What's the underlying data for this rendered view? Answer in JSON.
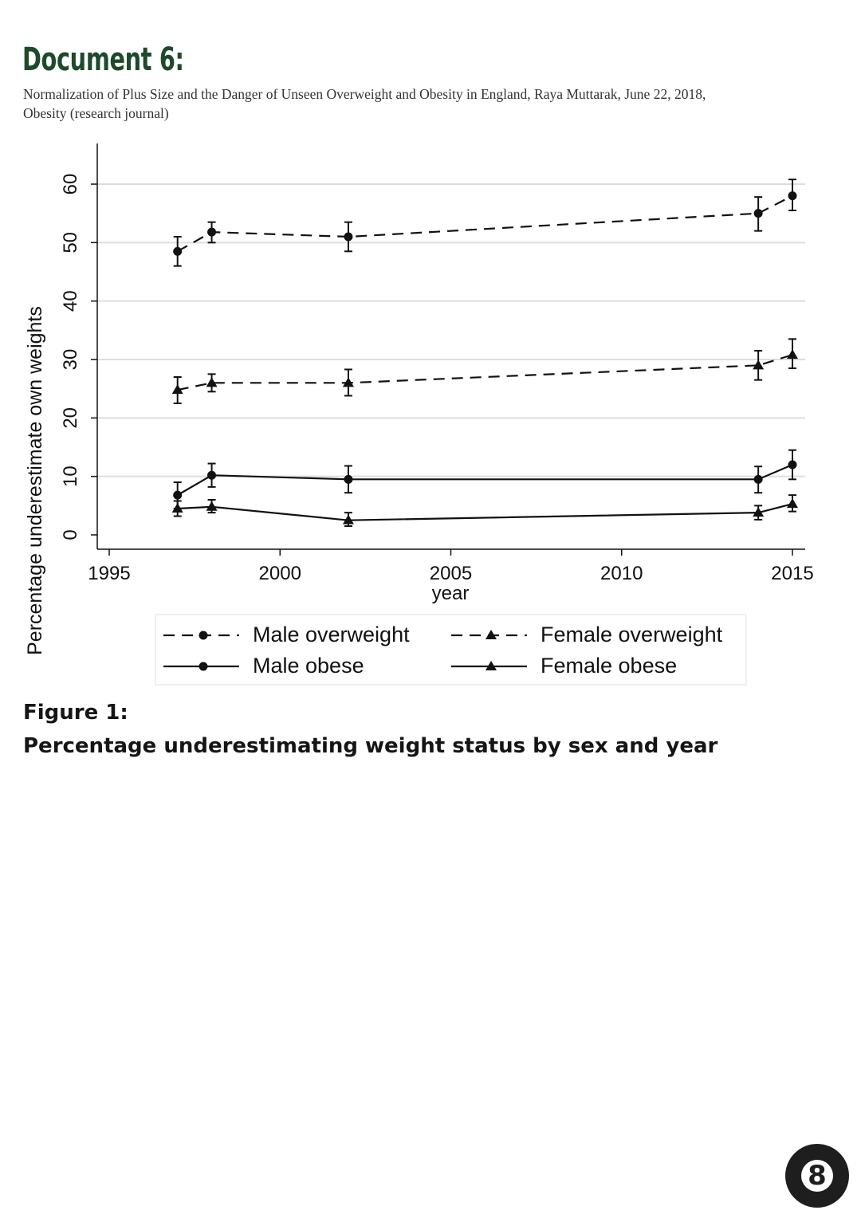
{
  "document": {
    "title": "Document 6:",
    "citation_line1": "Normalization of Plus Size and the Danger of Unseen Overweight and Obesity in England, Raya Muttarak, June 22, 2018,",
    "citation_line2": "Obesity (research journal)",
    "figure_label": "Figure 1:",
    "figure_caption": "Percentage underestimating weight status by sex and year",
    "page_number": "8"
  },
  "colors": {
    "title": "#1d4a2b",
    "series": "#111111",
    "grid": "#dddddd",
    "badge": "#1e1e1e"
  },
  "chart_data": {
    "type": "line",
    "title": "",
    "xlabel": "year",
    "ylabel": "Percentage underestimate own weights",
    "xlim": [
      1995,
      2015
    ],
    "ylim": [
      0,
      60
    ],
    "xticks": [
      1995,
      2000,
      2005,
      2010,
      2015
    ],
    "yticks": [
      0,
      10,
      20,
      30,
      40,
      50,
      60
    ],
    "grid": true,
    "legend_position": "bottom",
    "series": [
      {
        "name": "Male overweight",
        "line": "dashed",
        "marker": "circle",
        "points": [
          {
            "x": 1997,
            "y": 48.5,
            "lo": 46.0,
            "hi": 51.0
          },
          {
            "x": 1998,
            "y": 51.8,
            "lo": 50.0,
            "hi": 53.5
          },
          {
            "x": 2002,
            "y": 51.0,
            "lo": 48.5,
            "hi": 53.5
          },
          {
            "x": 2014,
            "y": 55.0,
            "lo": 52.0,
            "hi": 57.8
          },
          {
            "x": 2015,
            "y": 58.0,
            "lo": 55.5,
            "hi": 60.8
          }
        ]
      },
      {
        "name": "Female overweight",
        "line": "dashed",
        "marker": "triangle",
        "points": [
          {
            "x": 1997,
            "y": 24.8,
            "lo": 22.5,
            "hi": 27.0
          },
          {
            "x": 1998,
            "y": 26.0,
            "lo": 24.5,
            "hi": 27.5
          },
          {
            "x": 2002,
            "y": 26.0,
            "lo": 23.8,
            "hi": 28.3
          },
          {
            "x": 2014,
            "y": 29.0,
            "lo": 26.5,
            "hi": 31.5
          },
          {
            "x": 2015,
            "y": 30.8,
            "lo": 28.5,
            "hi": 33.5
          }
        ]
      },
      {
        "name": "Male obese",
        "line": "solid",
        "marker": "circle",
        "points": [
          {
            "x": 1997,
            "y": 6.8,
            "lo": 4.5,
            "hi": 9.0
          },
          {
            "x": 1998,
            "y": 10.2,
            "lo": 8.2,
            "hi": 12.2
          },
          {
            "x": 2002,
            "y": 9.5,
            "lo": 7.2,
            "hi": 11.8
          },
          {
            "x": 2014,
            "y": 9.5,
            "lo": 7.2,
            "hi": 11.7
          },
          {
            "x": 2015,
            "y": 12.0,
            "lo": 9.5,
            "hi": 14.5
          }
        ]
      },
      {
        "name": "Female obese",
        "line": "solid",
        "marker": "triangle",
        "points": [
          {
            "x": 1997,
            "y": 4.5,
            "lo": 3.2,
            "hi": 5.8
          },
          {
            "x": 1998,
            "y": 4.8,
            "lo": 3.8,
            "hi": 6.0
          },
          {
            "x": 2002,
            "y": 2.5,
            "lo": 1.5,
            "hi": 3.8
          },
          {
            "x": 2014,
            "y": 3.8,
            "lo": 2.6,
            "hi": 5.0
          },
          {
            "x": 2015,
            "y": 5.3,
            "lo": 4.0,
            "hi": 6.8
          }
        ]
      }
    ]
  }
}
